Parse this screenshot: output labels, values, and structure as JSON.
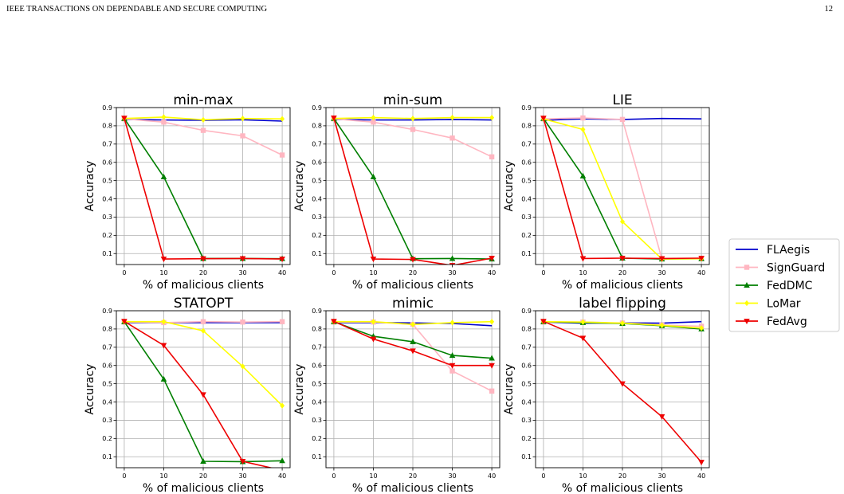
{
  "header": {
    "journal": "IEEE TRANSACTIONS ON DEPENDABLE AND SECURE COMPUTING",
    "page_number": "12"
  },
  "colors": {
    "FLAegis": "#0000cc",
    "SignGuard": "#ffb6c1",
    "FedDMC": "#007f00",
    "LoMar": "#ffff00",
    "FedAvg": "#ee0000"
  },
  "legend": [
    "FLAegis",
    "SignGuard",
    "FedDMC",
    "LoMar",
    "FedAvg"
  ],
  "chart_data": [
    {
      "type": "line",
      "title": "min-max",
      "xlabel": "% of malicious clients",
      "ylabel": "Accuracy",
      "x": [
        0,
        10,
        20,
        30,
        40
      ],
      "xlim": [
        -2,
        42
      ],
      "ylim": [
        0.04,
        0.9
      ],
      "series": [
        {
          "name": "FLAegis",
          "values": [
            0.835,
            0.832,
            0.83,
            0.833,
            0.826
          ]
        },
        {
          "name": "SignGuard",
          "values": [
            0.838,
            0.82,
            0.775,
            0.745,
            0.64
          ]
        },
        {
          "name": "FedDMC",
          "values": [
            0.84,
            0.52,
            0.073,
            0.073,
            0.072
          ]
        },
        {
          "name": "LoMar",
          "values": [
            0.84,
            0.848,
            0.833,
            0.84,
            0.838
          ]
        },
        {
          "name": "FedAvg",
          "values": [
            0.842,
            0.07,
            0.072,
            0.073,
            0.07
          ]
        }
      ]
    },
    {
      "type": "line",
      "title": "min-sum",
      "xlabel": "% of malicious clients",
      "ylabel": "Accuracy",
      "x": [
        0,
        10,
        20,
        30,
        40
      ],
      "xlim": [
        -2,
        42
      ],
      "ylim": [
        0.04,
        0.9
      ],
      "series": [
        {
          "name": "FLAegis",
          "values": [
            0.835,
            0.832,
            0.832,
            0.835,
            0.832
          ]
        },
        {
          "name": "SignGuard",
          "values": [
            0.838,
            0.82,
            0.78,
            0.733,
            0.63
          ]
        },
        {
          "name": "FedDMC",
          "values": [
            0.84,
            0.52,
            0.072,
            0.073,
            0.07
          ]
        },
        {
          "name": "LoMar",
          "values": [
            0.84,
            0.845,
            0.84,
            0.845,
            0.845
          ]
        },
        {
          "name": "FedAvg",
          "values": [
            0.843,
            0.07,
            0.068,
            0.035,
            0.075
          ]
        }
      ]
    },
    {
      "type": "line",
      "title": "LIE",
      "xlabel": "% of malicious clients",
      "ylabel": "Accuracy",
      "x": [
        0,
        10,
        20,
        30,
        40
      ],
      "xlim": [
        -2,
        42
      ],
      "ylim": [
        0.04,
        0.9
      ],
      "series": [
        {
          "name": "FLAegis",
          "values": [
            0.83,
            0.838,
            0.835,
            0.84,
            0.838
          ]
        },
        {
          "name": "SignGuard",
          "values": [
            0.838,
            0.843,
            0.835,
            0.072,
            0.072
          ]
        },
        {
          "name": "FedDMC",
          "values": [
            0.84,
            0.525,
            0.075,
            0.07,
            0.072
          ]
        },
        {
          "name": "LoMar",
          "values": [
            0.838,
            0.78,
            0.275,
            0.07,
            0.072
          ]
        },
        {
          "name": "FedAvg",
          "values": [
            0.842,
            0.073,
            0.075,
            0.073,
            0.075
          ]
        }
      ]
    },
    {
      "type": "line",
      "title": "STATOPT",
      "xlabel": "% of malicious clients",
      "ylabel": "Accuracy",
      "x": [
        0,
        10,
        20,
        30,
        40
      ],
      "xlim": [
        -2,
        42
      ],
      "ylim": [
        0.04,
        0.9
      ],
      "series": [
        {
          "name": "FLAegis",
          "values": [
            0.835,
            0.835,
            0.835,
            0.835,
            0.835
          ]
        },
        {
          "name": "SignGuard",
          "values": [
            0.838,
            0.835,
            0.84,
            0.838,
            0.84
          ]
        },
        {
          "name": "FedDMC",
          "values": [
            0.84,
            0.525,
            0.075,
            0.073,
            0.078
          ]
        },
        {
          "name": "LoMar",
          "values": [
            0.84,
            0.84,
            0.79,
            0.595,
            0.38
          ]
        },
        {
          "name": "FedAvg",
          "values": [
            0.842,
            0.71,
            0.44,
            0.075,
            0.025
          ]
        }
      ]
    },
    {
      "type": "line",
      "title": "mimic",
      "xlabel": "% of malicious clients",
      "ylabel": "Accuracy",
      "x": [
        0,
        10,
        20,
        30,
        40
      ],
      "xlim": [
        -2,
        42
      ],
      "ylim": [
        0.04,
        0.9
      ],
      "series": [
        {
          "name": "FLAegis",
          "values": [
            0.835,
            0.835,
            0.833,
            0.83,
            0.818
          ]
        },
        {
          "name": "SignGuard",
          "values": [
            0.838,
            0.838,
            0.825,
            0.57,
            0.46
          ]
        },
        {
          "name": "FedDMC",
          "values": [
            0.84,
            0.76,
            0.73,
            0.655,
            0.64
          ]
        },
        {
          "name": "LoMar",
          "values": [
            0.84,
            0.84,
            0.825,
            0.835,
            0.84
          ]
        },
        {
          "name": "FedAvg",
          "values": [
            0.842,
            0.745,
            0.68,
            0.6,
            0.6
          ]
        }
      ]
    },
    {
      "type": "line",
      "title": "label flipping",
      "xlabel": "% of malicious clients",
      "ylabel": "Accuracy",
      "x": [
        0,
        10,
        20,
        30,
        40
      ],
      "xlim": [
        -2,
        42
      ],
      "ylim": [
        0.04,
        0.9
      ],
      "series": [
        {
          "name": "FLAegis",
          "values": [
            0.838,
            0.832,
            0.833,
            0.832,
            0.84
          ]
        },
        {
          "name": "SignGuard",
          "values": [
            0.838,
            0.838,
            0.833,
            0.822,
            0.815
          ]
        },
        {
          "name": "FedDMC",
          "values": [
            0.84,
            0.835,
            0.83,
            0.818,
            0.8
          ]
        },
        {
          "name": "LoMar",
          "values": [
            0.84,
            0.838,
            0.832,
            0.82,
            0.805
          ]
        },
        {
          "name": "FedAvg",
          "values": [
            0.842,
            0.75,
            0.5,
            0.32,
            0.07
          ]
        }
      ]
    }
  ]
}
